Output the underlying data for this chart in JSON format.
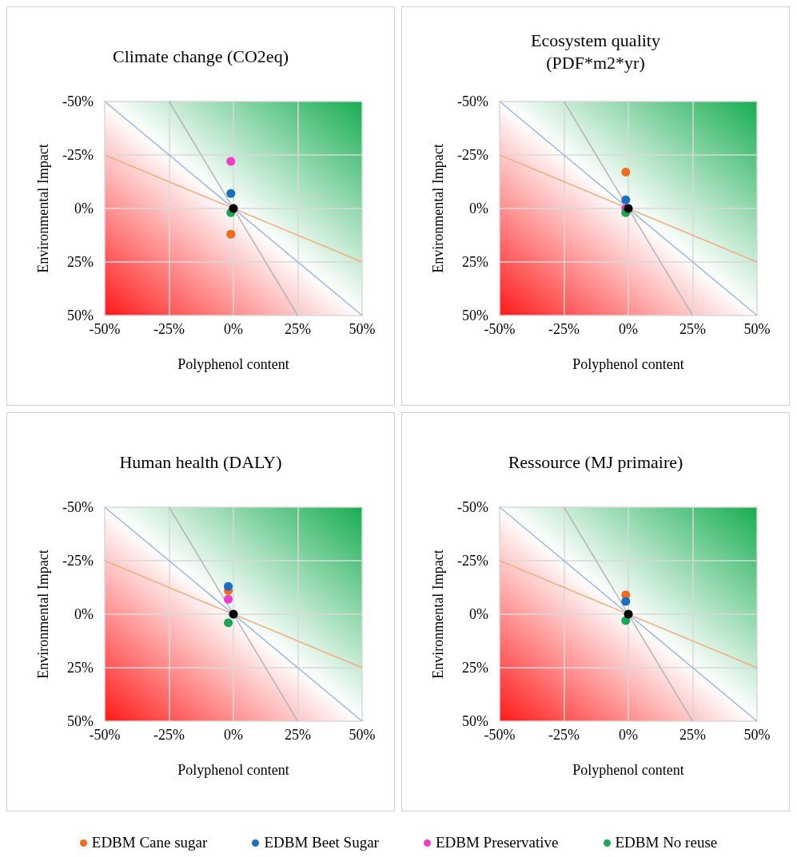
{
  "chart_data": [
    {
      "type": "scatter",
      "title": "Climate change (CO2eq)",
      "xlabel": "Polyphenol content",
      "ylabel": "Environmental Impact",
      "xlim": [
        -50,
        50
      ],
      "ylim": [
        50,
        -50
      ],
      "xticks": [
        {
          "value": -50,
          "label": "-50%"
        },
        {
          "value": -25,
          "label": "-25%"
        },
        {
          "value": 0,
          "label": "0%"
        },
        {
          "value": 25,
          "label": "25%"
        },
        {
          "value": 50,
          "label": "50%"
        }
      ],
      "yticks": [
        {
          "value": -50,
          "label": "-50%"
        },
        {
          "value": -25,
          "label": "-25%"
        },
        {
          "value": 0,
          "label": "0%"
        },
        {
          "value": 25,
          "label": "25%"
        },
        {
          "value": 50,
          "label": "50%"
        }
      ],
      "grid": true,
      "marker": "circle",
      "legend": "bottom",
      "series": [
        {
          "type": "line",
          "marker": "none",
          "color": "#f0b080",
          "x": [
            -50,
            50
          ],
          "values": [
            -25,
            25
          ]
        },
        {
          "type": "line",
          "marker": "none",
          "color": "#9ab8e0",
          "x": [
            -50,
            50
          ],
          "values": [
            -50,
            50
          ]
        },
        {
          "type": "line",
          "marker": "none",
          "color": "#b8b8b8",
          "x": [
            -25,
            25
          ],
          "values": [
            -50,
            50
          ]
        },
        {
          "name": "EDBM Cane sugar",
          "color": "#f26a1b",
          "x": [
            -1
          ],
          "values": [
            12
          ]
        },
        {
          "name": "EDBM Beet Sugar",
          "color": "#1a6fc4",
          "x": [
            -1
          ],
          "values": [
            -7
          ]
        },
        {
          "name": "EDBM Preservative",
          "color": "#f03cc8",
          "x": [
            -1
          ],
          "values": [
            -22
          ]
        },
        {
          "name": "EDBM No reuse",
          "color": "#1aa655",
          "x": [
            -1
          ],
          "values": [
            2
          ]
        },
        {
          "color": "#000000",
          "x": [
            0
          ],
          "values": [
            0
          ]
        }
      ]
    },
    {
      "type": "scatter",
      "title": "Ecosystem quality\n(PDF*m2*yr)",
      "xlabel": "Polyphenol content",
      "ylabel": "Environmental Impact",
      "xlim": [
        -50,
        50
      ],
      "ylim": [
        50,
        -50
      ],
      "xticks": [
        {
          "value": -50,
          "label": "-50%"
        },
        {
          "value": -25,
          "label": "-25%"
        },
        {
          "value": 0,
          "label": "0%"
        },
        {
          "value": 25,
          "label": "25%"
        },
        {
          "value": 50,
          "label": "50%"
        }
      ],
      "yticks": [
        {
          "value": -50,
          "label": "-50%"
        },
        {
          "value": -25,
          "label": "-25%"
        },
        {
          "value": 0,
          "label": "0%"
        },
        {
          "value": 25,
          "label": "25%"
        },
        {
          "value": 50,
          "label": "50%"
        }
      ],
      "grid": true,
      "marker": "circle",
      "legend": "bottom",
      "series": [
        {
          "type": "line",
          "marker": "none",
          "color": "#f0b080",
          "x": [
            -50,
            50
          ],
          "values": [
            -25,
            25
          ]
        },
        {
          "type": "line",
          "marker": "none",
          "color": "#9ab8e0",
          "x": [
            -50,
            50
          ],
          "values": [
            -50,
            50
          ]
        },
        {
          "type": "line",
          "marker": "none",
          "color": "#b8b8b8",
          "x": [
            -25,
            25
          ],
          "values": [
            -50,
            50
          ]
        },
        {
          "name": "EDBM Cane sugar",
          "color": "#f26a1b",
          "x": [
            -1
          ],
          "values": [
            -17
          ]
        },
        {
          "name": "EDBM Beet Sugar",
          "color": "#1a6fc4",
          "x": [
            -1
          ],
          "values": [
            -4
          ]
        },
        {
          "name": "EDBM Preservative",
          "color": "#f03cc8",
          "x": [
            -1
          ],
          "values": [
            0
          ]
        },
        {
          "name": "EDBM No reuse",
          "color": "#1aa655",
          "x": [
            -1
          ],
          "values": [
            2
          ]
        },
        {
          "color": "#000000",
          "x": [
            0
          ],
          "values": [
            0
          ]
        }
      ]
    },
    {
      "type": "scatter",
      "title": "Human health (DALY)",
      "xlabel": "Polyphenol content",
      "ylabel": "Environmental Impact",
      "xlim": [
        -50,
        50
      ],
      "ylim": [
        50,
        -50
      ],
      "xticks": [
        {
          "value": -50,
          "label": "-50%"
        },
        {
          "value": -25,
          "label": "-25%"
        },
        {
          "value": 0,
          "label": "0%"
        },
        {
          "value": 25,
          "label": "25%"
        },
        {
          "value": 50,
          "label": "50%"
        }
      ],
      "yticks": [
        {
          "value": -50,
          "label": "-50%"
        },
        {
          "value": -25,
          "label": "-25%"
        },
        {
          "value": 0,
          "label": "0%"
        },
        {
          "value": 25,
          "label": "25%"
        },
        {
          "value": 50,
          "label": "50%"
        }
      ],
      "grid": true,
      "marker": "circle",
      "legend": "bottom",
      "series": [
        {
          "type": "line",
          "marker": "none",
          "color": "#f0b080",
          "x": [
            -50,
            50
          ],
          "values": [
            -25,
            25
          ]
        },
        {
          "type": "line",
          "marker": "none",
          "color": "#9ab8e0",
          "x": [
            -50,
            50
          ],
          "values": [
            -50,
            50
          ]
        },
        {
          "type": "line",
          "marker": "none",
          "color": "#b8b8b8",
          "x": [
            -25,
            25
          ],
          "values": [
            -50,
            50
          ]
        },
        {
          "name": "EDBM Cane sugar",
          "color": "#f26a1b",
          "x": [
            -2
          ],
          "values": [
            -11
          ]
        },
        {
          "name": "EDBM Beet Sugar",
          "color": "#1a6fc4",
          "x": [
            -2
          ],
          "values": [
            -13
          ]
        },
        {
          "name": "EDBM Preservative",
          "color": "#f03cc8",
          "x": [
            -2
          ],
          "values": [
            -7
          ]
        },
        {
          "name": "EDBM No reuse",
          "color": "#1aa655",
          "x": [
            -2
          ],
          "values": [
            4
          ]
        },
        {
          "color": "#000000",
          "x": [
            0
          ],
          "values": [
            0
          ]
        }
      ]
    },
    {
      "type": "scatter",
      "title": "Ressource (MJ primaire)",
      "xlabel": "Polyphenol content",
      "ylabel": "Environmental Impact",
      "xlim": [
        -50,
        50
      ],
      "ylim": [
        50,
        -50
      ],
      "xticks": [
        {
          "value": -50,
          "label": "-50%"
        },
        {
          "value": -25,
          "label": "-25%"
        },
        {
          "value": 0,
          "label": "0%"
        },
        {
          "value": 25,
          "label": "25%"
        },
        {
          "value": 50,
          "label": "50%"
        }
      ],
      "yticks": [
        {
          "value": -50,
          "label": "-50%"
        },
        {
          "value": -25,
          "label": "-25%"
        },
        {
          "value": 0,
          "label": "0%"
        },
        {
          "value": 25,
          "label": "25%"
        },
        {
          "value": 50,
          "label": "50%"
        }
      ],
      "grid": true,
      "marker": "circle",
      "legend": "bottom",
      "series": [
        {
          "type": "line",
          "marker": "none",
          "color": "#f0b080",
          "x": [
            -50,
            50
          ],
          "values": [
            -25,
            25
          ]
        },
        {
          "type": "line",
          "marker": "none",
          "color": "#9ab8e0",
          "x": [
            -50,
            50
          ],
          "values": [
            -50,
            50
          ]
        },
        {
          "type": "line",
          "marker": "none",
          "color": "#b8b8b8",
          "x": [
            -25,
            25
          ],
          "values": [
            -50,
            50
          ]
        },
        {
          "name": "EDBM Cane sugar",
          "color": "#f26a1b",
          "x": [
            -1
          ],
          "values": [
            -9
          ]
        },
        {
          "name": "EDBM Beet Sugar",
          "color": "#1a6fc4",
          "x": [
            -1
          ],
          "values": [
            -6
          ]
        },
        {
          "name": "EDBM No reuse",
          "color": "#1aa655",
          "x": [
            -1
          ],
          "values": [
            3
          ]
        },
        {
          "color": "#000000",
          "x": [
            0
          ],
          "values": [
            0
          ]
        }
      ]
    }
  ]
}
